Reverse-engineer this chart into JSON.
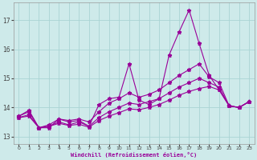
{
  "xlabel": "Windchill (Refroidissement éolien,°C)",
  "background_color": "#ceeaea",
  "line_color": "#990099",
  "grid_color": "#aad4d4",
  "xlim": [
    -0.5,
    23.5
  ],
  "ylim": [
    12.75,
    17.6
  ],
  "xticks": [
    0,
    1,
    2,
    3,
    4,
    5,
    6,
    7,
    8,
    9,
    10,
    11,
    12,
    13,
    14,
    15,
    16,
    17,
    18,
    19,
    20,
    21,
    22,
    23
  ],
  "yticks": [
    13,
    14,
    15,
    16,
    17
  ],
  "series": [
    [
      13.7,
      13.9,
      13.3,
      13.3,
      13.6,
      13.5,
      13.55,
      13.35,
      14.1,
      14.3,
      14.35,
      15.5,
      14.25,
      14.1,
      14.3,
      15.8,
      16.6,
      17.35,
      16.2,
      15.1,
      14.6,
      14.05,
      14.0,
      14.2
    ],
    [
      13.7,
      13.85,
      13.3,
      13.4,
      13.6,
      13.55,
      13.6,
      13.5,
      13.85,
      14.15,
      14.3,
      14.5,
      14.35,
      14.45,
      14.6,
      14.85,
      15.1,
      15.3,
      15.5,
      15.05,
      14.85,
      14.05,
      14.0,
      14.2
    ],
    [
      13.65,
      13.75,
      13.3,
      13.35,
      13.5,
      13.4,
      13.5,
      13.35,
      13.65,
      13.85,
      14.0,
      14.15,
      14.1,
      14.2,
      14.3,
      14.5,
      14.7,
      14.85,
      15.0,
      14.85,
      14.7,
      14.05,
      14.0,
      14.2
    ],
    [
      13.65,
      13.7,
      13.3,
      13.35,
      13.45,
      13.38,
      13.42,
      13.32,
      13.55,
      13.7,
      13.82,
      13.95,
      13.92,
      14.0,
      14.1,
      14.25,
      14.42,
      14.55,
      14.65,
      14.72,
      14.6,
      14.05,
      14.0,
      14.2
    ]
  ]
}
